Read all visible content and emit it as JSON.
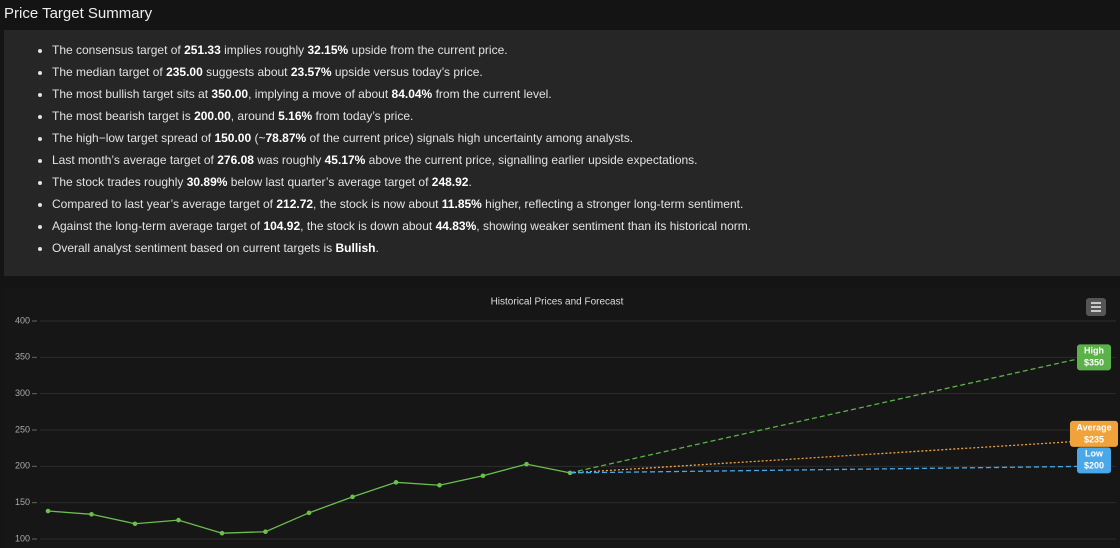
{
  "header": {
    "title": "Price Target Summary"
  },
  "summary": {
    "bullets": [
      [
        "The consensus target of ",
        "251.33",
        " implies roughly ",
        "32.15%",
        " upside from the current price."
      ],
      [
        "The median target of ",
        "235.00",
        " suggests about ",
        "23.57%",
        " upside versus today’s price."
      ],
      [
        "The most bullish target sits at ",
        "350.00",
        ", implying a move of about ",
        "84.04%",
        " from the current level."
      ],
      [
        "The most bearish target is ",
        "200.00",
        ", around ",
        "5.16%",
        " from today’s price."
      ],
      [
        "The high−low target spread of ",
        "150.00",
        " (~",
        "78.87%",
        " of the current price) signals high uncertainty among analysts."
      ],
      [
        "Last month’s average target of ",
        "276.08",
        " was roughly ",
        "45.17%",
        " above the current price, signalling earlier upside expectations."
      ],
      [
        "The stock trades roughly ",
        "30.89%",
        " below last quarter’s average target of ",
        "248.92",
        "."
      ],
      [
        "Compared to last year’s average target of ",
        "212.72",
        ", the stock is now about ",
        "11.85%",
        " higher, reflecting a stronger long-term sentiment."
      ],
      [
        "Against the long-term average target of ",
        "104.92",
        ", the stock is down about ",
        "44.83%",
        ", showing weaker sentiment than its historical norm."
      ],
      [
        "Overall analyst sentiment based on current targets is ",
        "Bullish",
        "."
      ]
    ]
  },
  "chart_data": {
    "type": "line",
    "title": "Historical Prices and Forecast",
    "categories": [
      null,
      null,
      null,
      null,
      null,
      null,
      null,
      null,
      null,
      null,
      null,
      null,
      null
    ],
    "ylim": [
      100,
      400
    ],
    "yticks": [
      100,
      150,
      200,
      250,
      300,
      350,
      400
    ],
    "grid": true,
    "series": [
      {
        "color": "#6bbf4e",
        "values": [
          138.5,
          134,
          121,
          126,
          108,
          110,
          136,
          158,
          178,
          174,
          187,
          203,
          191
        ]
      }
    ],
    "forecasts": [
      {
        "name": "High",
        "value": 350,
        "value_label": "$350",
        "color": "#5cb14a",
        "dash": "dashed"
      },
      {
        "name": "Average",
        "value": 235,
        "value_label": "$235",
        "color": "#f0a33a",
        "dash": "dotted"
      },
      {
        "name": "Low",
        "value": 200,
        "value_label": "$200",
        "color": "#4aa8e8",
        "dash": "dashed"
      }
    ]
  }
}
